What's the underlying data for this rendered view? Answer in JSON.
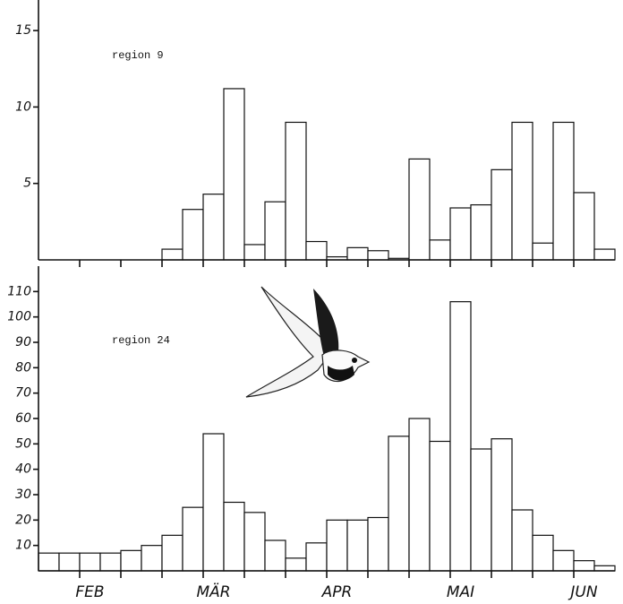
{
  "chart_data": [
    {
      "type": "bar",
      "annotation": "region 9",
      "values": [
        0,
        0,
        0,
        0,
        0,
        0,
        0.7,
        3.3,
        4.3,
        11.2,
        1.0,
        3.8,
        9.0,
        1.2,
        0.2,
        0.8,
        0.6,
        0.1,
        6.6,
        1.3,
        3.4,
        3.6,
        5.9,
        9.0,
        1.1,
        9.0,
        4.4,
        0.7
      ],
      "color": "#ffffff",
      "ylim": [
        0,
        17
      ],
      "yticks": [
        5,
        10,
        15
      ]
    },
    {
      "type": "bar",
      "annotation": "region 24",
      "categories": [
        null,
        null,
        "FEB",
        null,
        null,
        null,
        null,
        null,
        "MÄR",
        null,
        null,
        null,
        null,
        null,
        "APR",
        null,
        null,
        null,
        null,
        null,
        "MAI",
        null,
        null,
        null,
        null,
        null,
        "JUN",
        null
      ],
      "values": [
        7,
        7,
        7,
        7,
        8,
        10,
        14,
        25,
        54,
        27,
        23,
        12,
        5,
        11,
        20,
        20,
        21,
        53,
        60,
        51,
        106,
        48,
        52,
        24,
        14,
        8,
        4,
        2
      ],
      "color": "#ffffff",
      "ylim": [
        0,
        120
      ],
      "yticks": [
        10,
        20,
        30,
        40,
        50,
        60,
        70,
        80,
        90,
        100,
        110
      ]
    }
  ]
}
